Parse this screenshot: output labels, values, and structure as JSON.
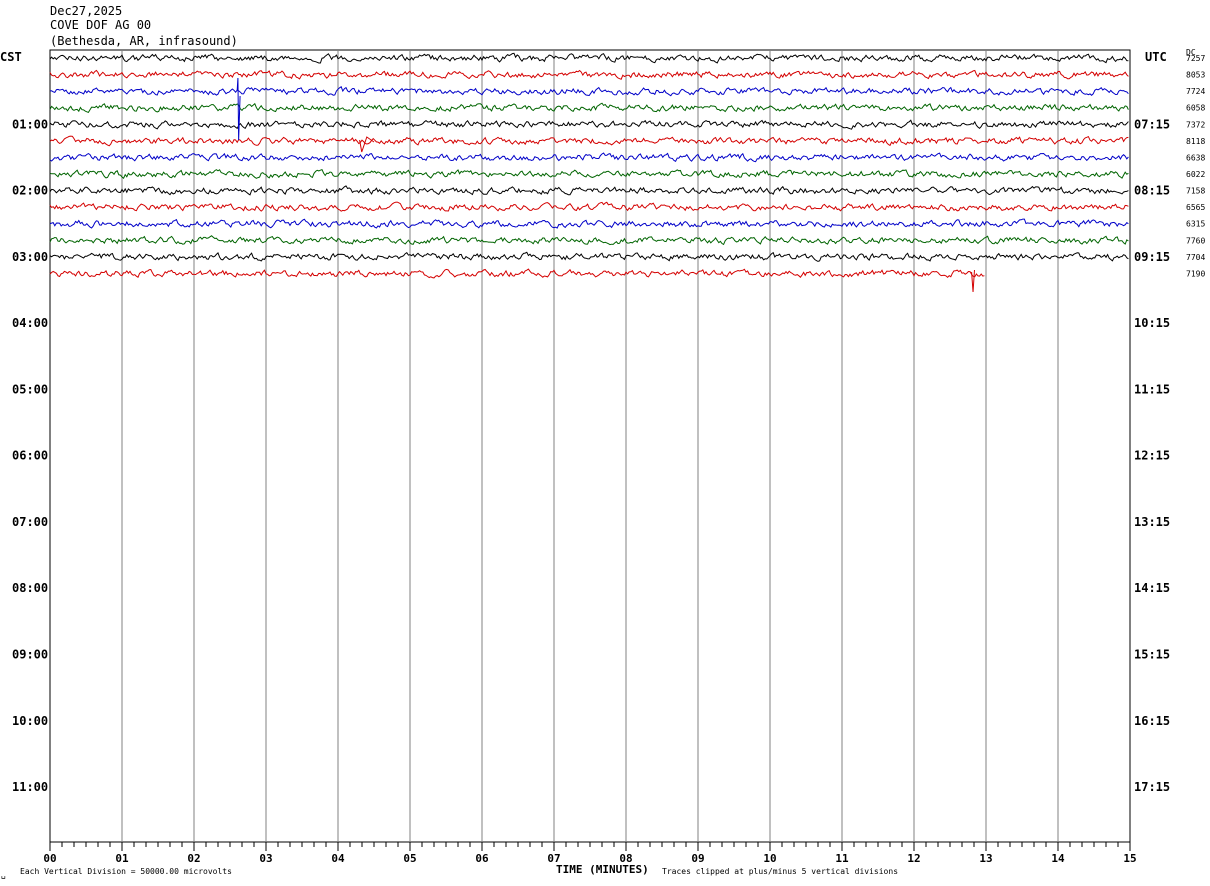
{
  "header": {
    "date": "Dec27,2025",
    "station": "COVE DOF AG 00",
    "location": "(Bethesda, AR, infrasound)"
  },
  "labels": {
    "left_tz": "CST",
    "right_tz": "UTC",
    "dc": "DC"
  },
  "footer": {
    "scale_note": "Each Vertical Division = 50000.00 microvolts",
    "clip_note": "Traces clipped at plus/minus 5 vertical divisions"
  },
  "chart_data": {
    "type": "line",
    "xlabel": "TIME (MINUTES)",
    "xlim": [
      0,
      15
    ],
    "x_ticks": [
      "00",
      "01",
      "02",
      "03",
      "04",
      "05",
      "06",
      "07",
      "08",
      "09",
      "10",
      "11",
      "12",
      "13",
      "14",
      "15"
    ],
    "left_hours": [
      "01:00",
      "02:00",
      "03:00",
      "04:00",
      "05:00",
      "06:00",
      "07:00",
      "08:00",
      "09:00",
      "10:00",
      "11:00"
    ],
    "right_hours": [
      "07:15",
      "08:15",
      "09:15",
      "10:15",
      "11:15",
      "12:15",
      "13:15",
      "14:15",
      "15:15",
      "16:15",
      "17:15"
    ],
    "trace_colors": [
      "#000000",
      "#d40000",
      "#0000c8",
      "#006400"
    ],
    "traces": [
      {
        "dc": "7257",
        "color": "#000000",
        "end_minute": 15
      },
      {
        "dc": "8053",
        "color": "#d40000",
        "end_minute": 15
      },
      {
        "dc": "7724",
        "color": "#0000c8",
        "end_minute": 15
      },
      {
        "dc": "6058",
        "color": "#006400",
        "end_minute": 15
      },
      {
        "dc": "7372",
        "color": "#000000",
        "end_minute": 15
      },
      {
        "dc": "8118",
        "color": "#d40000",
        "end_minute": 15
      },
      {
        "dc": "6638",
        "color": "#0000c8",
        "end_minute": 15
      },
      {
        "dc": "6022",
        "color": "#006400",
        "end_minute": 15
      },
      {
        "dc": "7158",
        "color": "#000000",
        "end_minute": 15
      },
      {
        "dc": "6565",
        "color": "#d40000",
        "end_minute": 15
      },
      {
        "dc": "6315",
        "color": "#0000c8",
        "end_minute": 15
      },
      {
        "dc": "7760",
        "color": "#006400",
        "end_minute": 15
      },
      {
        "dc": "7704",
        "color": "#000000",
        "end_minute": 15
      },
      {
        "dc": "7190",
        "color": "#d40000",
        "end_minute": 13
      }
    ]
  }
}
